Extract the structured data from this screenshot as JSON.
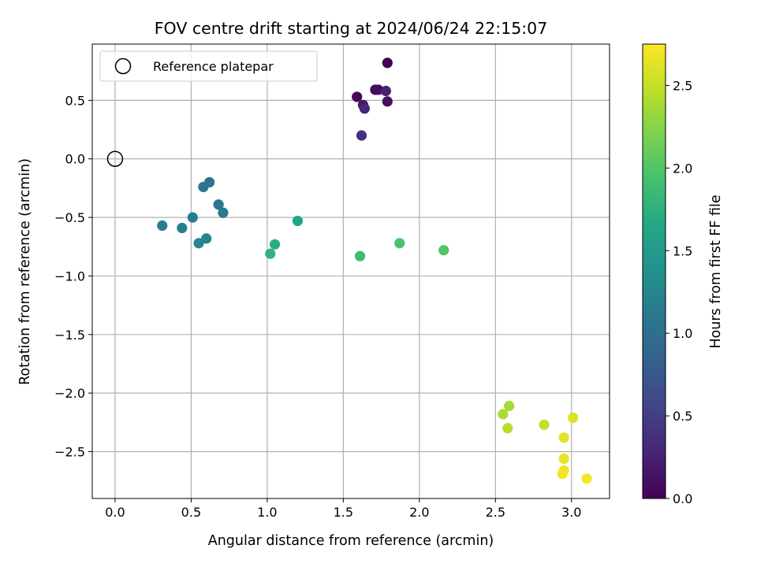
{
  "chart_data": {
    "type": "scatter",
    "title": "FOV centre drift starting at 2024/06/24 22:15:07",
    "xlabel": "Angular distance from reference (arcmin)",
    "ylabel": "Rotation from reference (arcmin)",
    "xlim": [
      -0.15,
      3.25
    ],
    "ylim": [
      -2.9,
      0.98
    ],
    "xticks": [
      0.0,
      0.5,
      1.0,
      1.5,
      2.0,
      2.5,
      3.0
    ],
    "xtick_labels": [
      "0.0",
      "0.5",
      "1.0",
      "1.5",
      "2.0",
      "2.5",
      "3.0"
    ],
    "yticks": [
      0.5,
      0.0,
      -0.5,
      -1.0,
      -1.5,
      -2.0,
      -2.5
    ],
    "ytick_labels": [
      "0.5",
      "0.0",
      "−0.5",
      "−1.0",
      "−1.5",
      "−2.0",
      "−2.5"
    ],
    "grid": true,
    "legend": {
      "placement": "top-left",
      "entries": [
        "Reference platepar"
      ]
    },
    "reference_point": {
      "x": 0.0,
      "y": 0.0,
      "marker": "hollow-circle",
      "label": "Reference platepar"
    },
    "colorbar": {
      "label": "Hours from first FF file",
      "colormap": "viridis",
      "range": [
        0.0,
        2.75
      ],
      "ticks": [
        0.0,
        0.5,
        1.0,
        1.5,
        2.0,
        2.5
      ],
      "tick_labels": [
        "0.0",
        "0.5",
        "1.0",
        "1.5",
        "2.0",
        "2.5"
      ]
    },
    "points": [
      {
        "x": 1.79,
        "y": 0.82,
        "c": 0.0
      },
      {
        "x": 1.59,
        "y": 0.53,
        "c": 0.05
      },
      {
        "x": 1.71,
        "y": 0.59,
        "c": 0.08
      },
      {
        "x": 1.73,
        "y": 0.59,
        "c": 0.1
      },
      {
        "x": 1.79,
        "y": 0.49,
        "c": 0.12
      },
      {
        "x": 1.63,
        "y": 0.46,
        "c": 0.18
      },
      {
        "x": 1.78,
        "y": 0.58,
        "c": 0.25
      },
      {
        "x": 1.64,
        "y": 0.43,
        "c": 0.3
      },
      {
        "x": 1.62,
        "y": 0.2,
        "c": 0.38
      },
      {
        "x": 0.62,
        "y": -0.2,
        "c": 1.05
      },
      {
        "x": 0.58,
        "y": -0.24,
        "c": 1.08
      },
      {
        "x": 0.68,
        "y": -0.39,
        "c": 1.1
      },
      {
        "x": 0.71,
        "y": -0.46,
        "c": 1.12
      },
      {
        "x": 0.51,
        "y": -0.5,
        "c": 1.15
      },
      {
        "x": 0.31,
        "y": -0.57,
        "c": 1.18
      },
      {
        "x": 0.44,
        "y": -0.59,
        "c": 1.2
      },
      {
        "x": 0.6,
        "y": -0.68,
        "c": 1.22
      },
      {
        "x": 0.55,
        "y": -0.72,
        "c": 1.25
      },
      {
        "x": 1.2,
        "y": -0.53,
        "c": 1.62
      },
      {
        "x": 1.05,
        "y": -0.73,
        "c": 1.72
      },
      {
        "x": 1.02,
        "y": -0.81,
        "c": 1.78
      },
      {
        "x": 1.61,
        "y": -0.83,
        "c": 1.88
      },
      {
        "x": 1.87,
        "y": -0.72,
        "c": 1.95
      },
      {
        "x": 2.16,
        "y": -0.78,
        "c": 2.0
      },
      {
        "x": 2.59,
        "y": -2.11,
        "c": 2.38
      },
      {
        "x": 2.55,
        "y": -2.18,
        "c": 2.4
      },
      {
        "x": 2.58,
        "y": -2.3,
        "c": 2.45
      },
      {
        "x": 2.82,
        "y": -2.27,
        "c": 2.5
      },
      {
        "x": 3.01,
        "y": -2.21,
        "c": 2.6
      },
      {
        "x": 2.95,
        "y": -2.38,
        "c": 2.63
      },
      {
        "x": 2.95,
        "y": -2.56,
        "c": 2.66
      },
      {
        "x": 2.95,
        "y": -2.66,
        "c": 2.68
      },
      {
        "x": 2.94,
        "y": -2.69,
        "c": 2.7
      },
      {
        "x": 3.1,
        "y": -2.73,
        "c": 2.73
      }
    ]
  }
}
